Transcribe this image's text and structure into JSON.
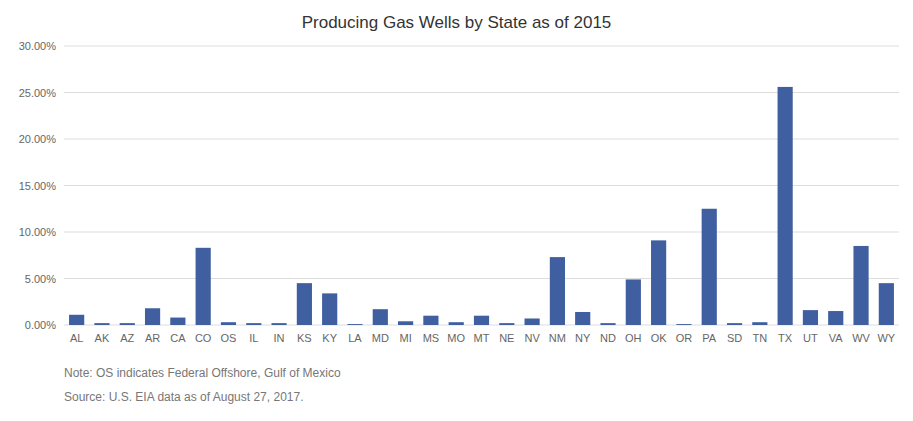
{
  "chart_data": {
    "type": "bar",
    "title": "Producing Gas Wells by State as of 2015",
    "categories": [
      "AL",
      "AK",
      "AZ",
      "AR",
      "CA",
      "CO",
      "OS",
      "IL",
      "IN",
      "KS",
      "KY",
      "LA",
      "MD",
      "MI",
      "MS",
      "MO",
      "MT",
      "NE",
      "NV",
      "NM",
      "NY",
      "ND",
      "OH",
      "OK",
      "OR",
      "PA",
      "SD",
      "TN",
      "TX",
      "UT",
      "VA",
      "WV",
      "WY"
    ],
    "values": [
      0.011,
      0.002,
      0.002,
      0.018,
      0.008,
      0.083,
      0.003,
      0.002,
      0.002,
      0.045,
      0.034,
      0.001,
      0.017,
      0.004,
      0.01,
      0.003,
      0.01,
      0.002,
      0.007,
      0.073,
      0.014,
      0.002,
      0.049,
      0.091,
      0.001,
      0.125,
      0.002,
      0.003,
      0.256,
      0.016,
      0.015,
      0.085,
      0.045
    ],
    "color": "#3F5FA0",
    "ylim": [
      0.0,
      0.3
    ],
    "yticks": [
      {
        "value": 0.0,
        "label": "0.00%"
      },
      {
        "value": 0.05,
        "label": "5.00%"
      },
      {
        "value": 0.1,
        "label": "10.00%"
      },
      {
        "value": 0.15,
        "label": "15.00%"
      },
      {
        "value": 0.2,
        "label": "20.00%"
      },
      {
        "value": 0.25,
        "label": "25.00%"
      },
      {
        "value": 0.3,
        "label": "30.00%"
      }
    ],
    "grid": true,
    "annotations": [
      "Note: OS indicates Federal Offshore, Gulf of Mexico",
      "Source: U.S. EIA data as of August 27, 2017."
    ]
  }
}
